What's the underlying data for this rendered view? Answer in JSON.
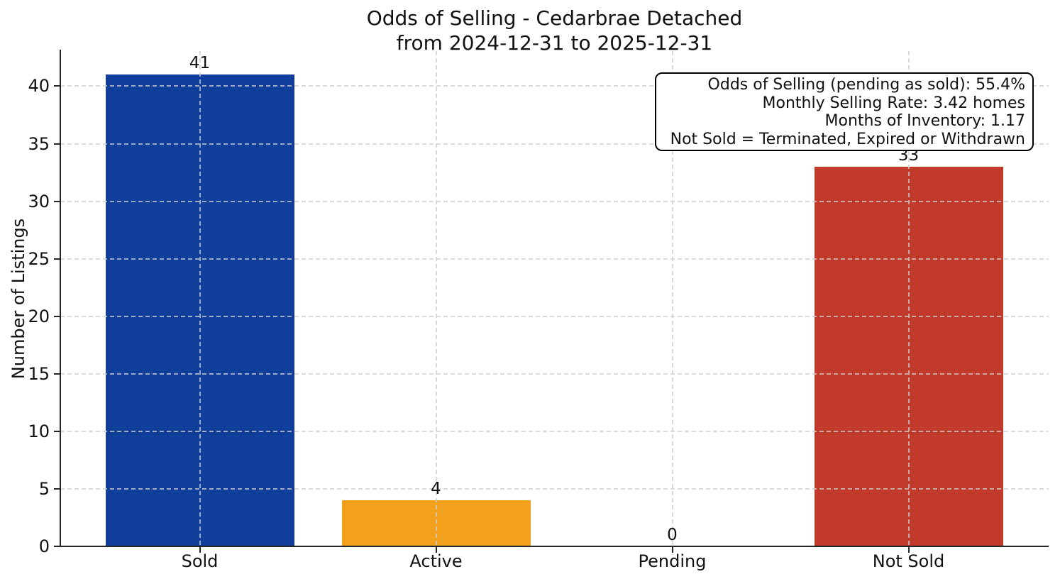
{
  "title": {
    "line1": "Odds of Selling - Cedarbrae Detached",
    "line2": "from 2024-12-31 to 2025-12-31"
  },
  "annotation": {
    "lines": [
      "Odds of Selling (pending as sold): 55.4%",
      "Monthly Selling Rate: 3.42 homes",
      "Months of Inventory: 1.17",
      "Not Sold = Terminated, Expired or Withdrawn"
    ]
  },
  "colors": {
    "sold_bar": "#103E9B",
    "active_bar": "#F3A11C",
    "not_sold_bar": "#C23A2C",
    "grid": "#CFCFCF",
    "axis": "#262626",
    "background": "#FFFFFF",
    "text": "#111111"
  },
  "chart_data": {
    "type": "bar",
    "title": "Odds of Selling - Cedarbrae Detached\nfrom 2024-12-31 to 2025-12-31",
    "categories": [
      "Sold",
      "Active",
      "Pending",
      "Not Sold"
    ],
    "values": [
      41,
      4,
      0,
      33
    ],
    "value_labels": [
      "41",
      "4",
      "0",
      "33"
    ],
    "bar_colors": [
      "#103E9B",
      "#F3A11C",
      null,
      "#C23A2C"
    ],
    "xlabel": "",
    "ylabel": "Number of Listings",
    "ylim": [
      0,
      43.05
    ],
    "yticks": [
      0,
      5,
      10,
      15,
      20,
      25,
      30,
      35,
      40
    ],
    "grid": "dashed light gray, horizontal and vertical, drawn over bars",
    "legend_position": "none",
    "annotation_lines": [
      "Odds of Selling (pending as sold): 55.4%",
      "Monthly Selling Rate: 3.42 homes",
      "Months of Inventory: 1.17",
      "Not Sold = Terminated, Expired or Withdrawn"
    ]
  }
}
